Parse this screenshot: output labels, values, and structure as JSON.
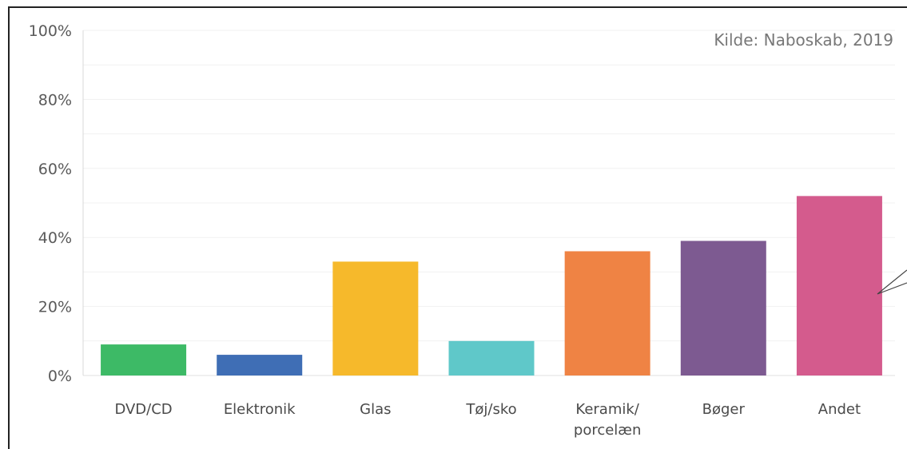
{
  "chart_data": {
    "type": "bar",
    "source": "Kilde: Naboskab, 2019",
    "categories": [
      [
        "DVD/CD"
      ],
      [
        "Elektronik"
      ],
      [
        "Glas"
      ],
      [
        "Tøj/sko"
      ],
      [
        "Keramik/",
        "porcelæn"
      ],
      [
        "Bøger"
      ],
      [
        "Andet"
      ]
    ],
    "values": [
      9,
      6,
      33,
      10,
      36,
      39,
      52
    ],
    "colors": [
      "#3dba66",
      "#3f6eb5",
      "#f6b92b",
      "#5fc8c9",
      "#ef8344",
      "#7d5a91",
      "#d45b8d"
    ],
    "ylim": [
      0,
      100
    ],
    "yticks": [
      "0%",
      "20%",
      "40%",
      "60%",
      "80%",
      "100%"
    ],
    "grid": true
  }
}
